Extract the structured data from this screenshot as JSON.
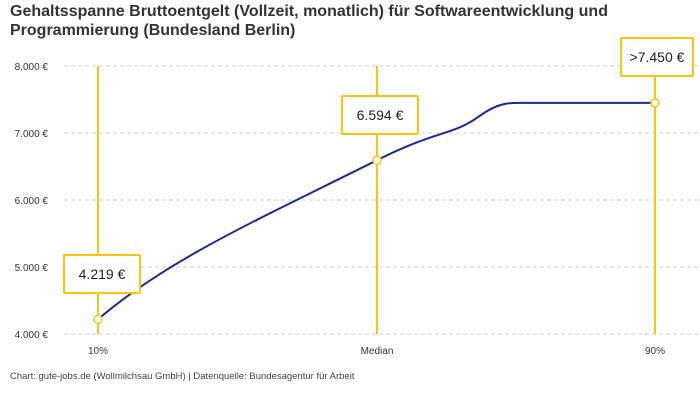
{
  "chart_data": {
    "type": "line",
    "title": "Gehaltsspanne Bruttoentgelt (Vollzeit, monatlich) für Softwareentwicklung und Programmierung (Bundesland Berlin)",
    "categories": [
      "10%",
      "Median",
      "90%"
    ],
    "values": [
      4219,
      6594,
      7450
    ],
    "data_labels": [
      "4.219 €",
      "6.594 €",
      ">7.450 €"
    ],
    "ylim": [
      4000,
      8000
    ],
    "yticks": [
      4000,
      5000,
      6000,
      7000,
      8000
    ],
    "ytick_labels": [
      "4.000 €",
      "5.000 €",
      "6.000 €",
      "7.000 €",
      "8.000 €"
    ],
    "grid": true,
    "line_color": "#1B2A8F",
    "marker_color": "#FFC20E"
  },
  "footer": "Chart: gute-jobs.de (Wollmilchsau GmbH) | Datenquelle: Bundesagentur für Arbeit"
}
